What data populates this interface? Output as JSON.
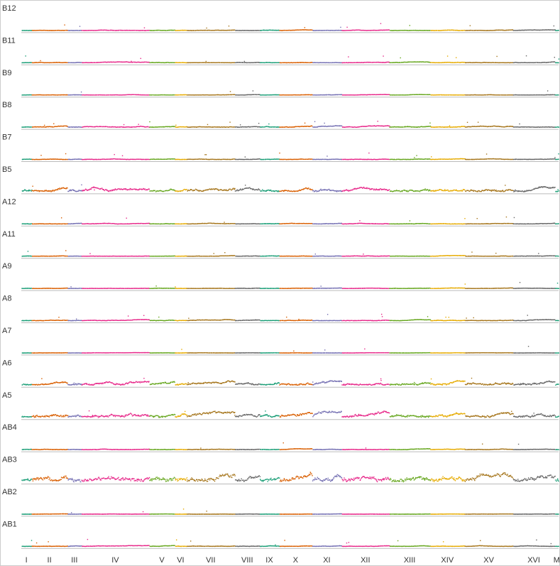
{
  "chart_data": {
    "type": "scatter",
    "description_free": true,
    "samples": [
      "B12",
      "B11",
      "B9",
      "B8",
      "B7",
      "B5",
      "A12",
      "A11",
      "A9",
      "A8",
      "A7",
      "A6",
      "A5",
      "AB4",
      "AB3",
      "AB2",
      "AB1"
    ],
    "chromosomes": [
      {
        "label": "I",
        "length": 230,
        "color": "#1b9e77"
      },
      {
        "label": "II",
        "length": 813,
        "color": "#d95f02"
      },
      {
        "label": "III",
        "length": 317,
        "color": "#7570b3"
      },
      {
        "label": "IV",
        "length": 1532,
        "color": "#e7298a"
      },
      {
        "label": "V",
        "length": 577,
        "color": "#66a61e"
      },
      {
        "label": "VI",
        "length": 270,
        "color": "#e6ab02"
      },
      {
        "label": "VII",
        "length": 1091,
        "color": "#a6761d"
      },
      {
        "label": "VIII",
        "length": 563,
        "color": "#666666"
      },
      {
        "label": "IX",
        "length": 440,
        "color": "#1b9e77"
      },
      {
        "label": "X",
        "length": 746,
        "color": "#d95f02"
      },
      {
        "label": "XI",
        "length": 667,
        "color": "#7570b3"
      },
      {
        "label": "XII",
        "length": 1078,
        "color": "#e7298a"
      },
      {
        "label": "XIII",
        "length": 924,
        "color": "#66a61e"
      },
      {
        "label": "XIV",
        "length": 784,
        "color": "#e6ab02"
      },
      {
        "label": "XV",
        "length": 1091,
        "color": "#a6761d"
      },
      {
        "label": "XVI",
        "length": 948,
        "color": "#666666"
      },
      {
        "label": "M",
        "length": 86,
        "color": "#1b9e77"
      }
    ],
    "sample_profiles": {
      "B12": {
        "noise": 0.4,
        "spikes": 6
      },
      "B11": {
        "noise": 0.5,
        "spikes": 8
      },
      "B9": {
        "noise": 0.3,
        "spikes": 3
      },
      "B8": {
        "noise": 0.8,
        "spikes": 14
      },
      "B7": {
        "noise": 0.5,
        "spikes": 10
      },
      "B5": {
        "noise": 2.5,
        "spikes": 4
      },
      "A12": {
        "noise": 0.5,
        "spikes": 8
      },
      "A11": {
        "noise": 0.4,
        "spikes": 6
      },
      "A9": {
        "noise": 0.3,
        "spikes": 3
      },
      "A8": {
        "noise": 0.6,
        "spikes": 10
      },
      "A7": {
        "noise": 0.2,
        "spikes": 2
      },
      "A6": {
        "noise": 2.2,
        "spikes": 6
      },
      "A5": {
        "noise": 3.0,
        "spikes": 5
      },
      "AB4": {
        "noise": 0.5,
        "spikes": 3
      },
      "AB3": {
        "noise": 5.0,
        "spikes": 4
      },
      "AB2": {
        "noise": 0.2,
        "spikes": 1
      },
      "AB1": {
        "noise": 0.5,
        "spikes": 8
      }
    },
    "grid": false,
    "legend": "none",
    "border_color": "#bbbbbb"
  }
}
